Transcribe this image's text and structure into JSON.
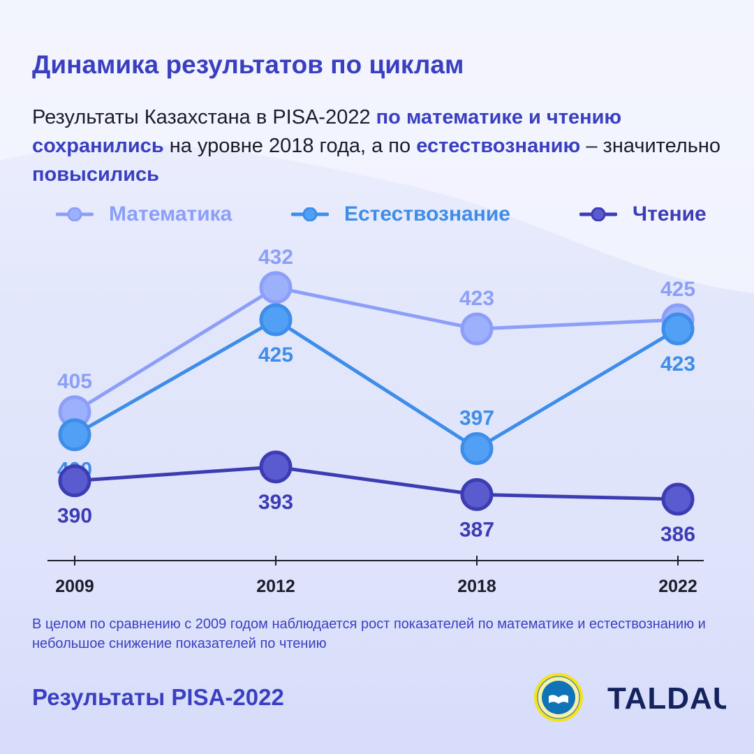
{
  "title": "Динамика результатов по циклам",
  "subtitle": {
    "p1": "Результаты Казахстана в PISA-2022 ",
    "h1": "по математике и чтению сохранились",
    "p2": " на уровне 2018 года, а по ",
    "h2": "естествознанию",
    "p3": " – значительно ",
    "h3": "повысились"
  },
  "note": "В целом по сравнению с 2009 годом наблюдается рост показателей по математике и естествознанию и небольшое снижение показателей по чтению",
  "footer": "Результаты PISA-2022",
  "logos": {
    "emblem": "book-emblem",
    "brand": "TALDAU"
  },
  "colors": {
    "title": "#3a3fc0",
    "math": "#8c9ff8",
    "science": "#3d8de9",
    "reading": "#3c3cb3"
  },
  "chart_data": {
    "type": "line",
    "categories": [
      "2009",
      "2012",
      "2018",
      "2022"
    ],
    "series": [
      {
        "name": "Математика",
        "values": [
          405,
          432,
          423,
          425
        ],
        "color": "#8c9ff8"
      },
      {
        "name": "Естествознание",
        "values": [
          400,
          425,
          397,
          423
        ],
        "color": "#3d8de9"
      },
      {
        "name": "Чтение",
        "values": [
          390,
          393,
          387,
          386
        ],
        "color": "#3c3cb3"
      }
    ],
    "legend": "top",
    "grid": false,
    "ylim": [
      383,
      436
    ]
  }
}
